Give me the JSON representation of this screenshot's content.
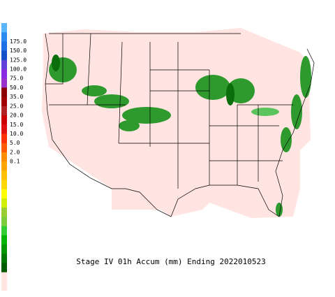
{
  "legend": {
    "labels": [
      "175.0",
      "150.0",
      "125.0",
      "100.0",
      "75.0",
      "50.0",
      "35.0",
      "25.0",
      "20.0",
      "15.0",
      "10.0",
      "5.0",
      "2.0",
      "0.1"
    ],
    "colors": [
      "#59b6ff",
      "#2a8cf0",
      "#1e6ee6",
      "#1450c8",
      "#6040d8",
      "#8a2be2",
      "#9932cc",
      "#8b0000",
      "#a00000",
      "#b22222",
      "#cd0000",
      "#e01010",
      "#ff3000",
      "#ff5a00",
      "#ff8c00",
      "#ffa500",
      "#ffc000",
      "#ffd700",
      "#ffff00",
      "#d0f000",
      "#9acd32",
      "#7ccd3c",
      "#32cd32",
      "#00b400",
      "#009600",
      "#007800",
      "#005a00",
      "#ffe4e1"
    ]
  },
  "caption": "Stage IV 01h Accum (mm) Ending 2022010523"
}
